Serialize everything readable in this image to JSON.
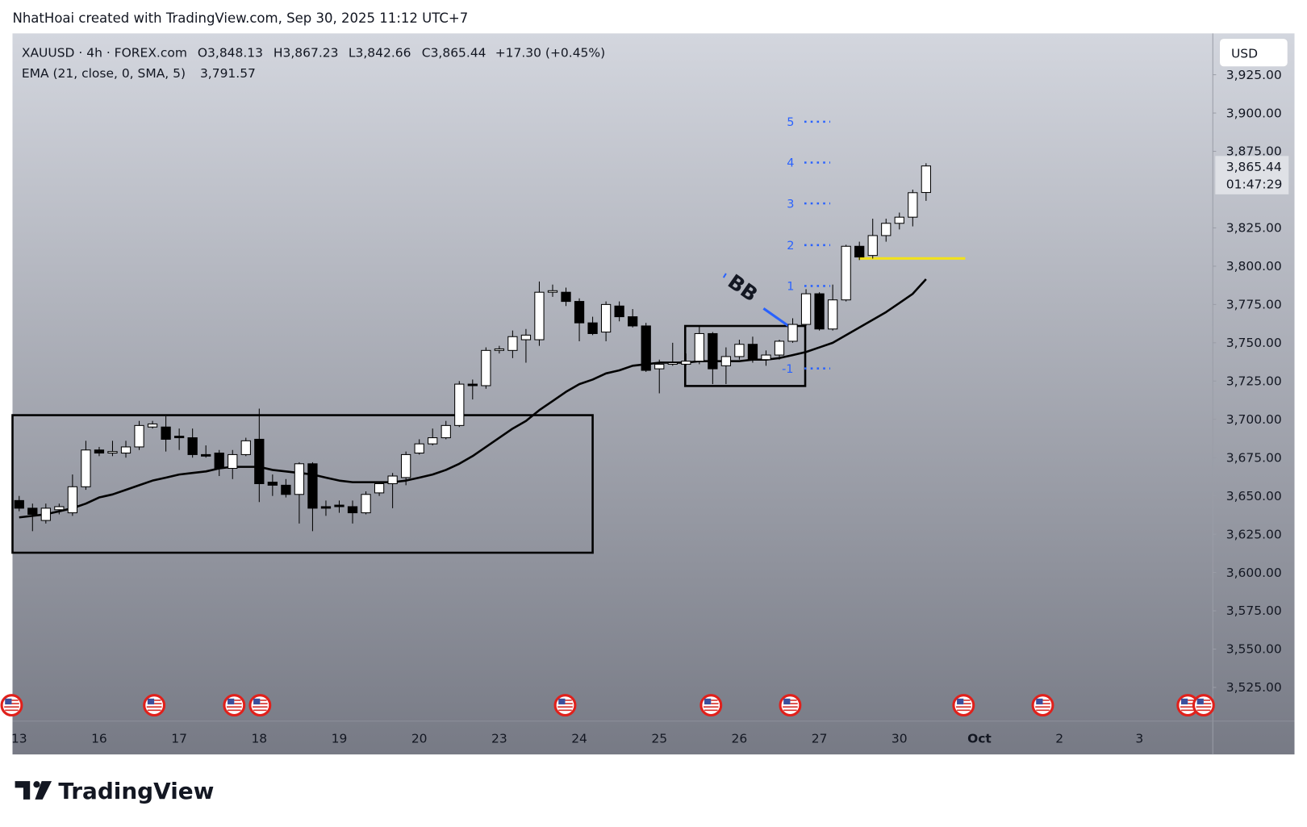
{
  "chart_data": {
    "type": "candlestick",
    "header": "NhatHoai created with TradingView.com, Sep 30, 2025 11:12 UTC+7",
    "symbol": "XAUUSD · 4h · FOREX.com",
    "ohlc_legend": [
      "O3,848.13",
      "H3,867.23",
      "L3,842.66",
      "C3,865.44",
      "+17.30 (+0.45%)"
    ],
    "currency": "USD",
    "up_color": "#ffffff",
    "down_color": "#000000",
    "categories": [
      "13",
      null,
      null,
      null,
      null,
      null,
      "16",
      null,
      null,
      null,
      null,
      null,
      "17",
      null,
      null,
      null,
      null,
      null,
      "18",
      null,
      null,
      null,
      null,
      null,
      "19",
      null,
      null,
      null,
      null,
      null,
      "20",
      null,
      null,
      null,
      null,
      null,
      "23",
      null,
      null,
      null,
      null,
      null,
      "24",
      null,
      null,
      null,
      null,
      null,
      "25",
      null,
      null,
      null,
      null,
      null,
      "26",
      null,
      null,
      null,
      null,
      null,
      "27",
      null,
      null,
      null,
      null,
      null,
      "30",
      null,
      null,
      null,
      null,
      null,
      "Oct",
      null,
      null,
      null,
      null,
      null,
      "2",
      null,
      null,
      null,
      null,
      null,
      "3",
      null,
      null,
      null,
      null,
      null
    ],
    "open": [
      3647,
      3642,
      3634,
      3641,
      3639,
      3656,
      3680,
      3678,
      3678,
      3682,
      3695,
      3695,
      3689,
      3688,
      3677,
      3678,
      3668,
      3677,
      3687,
      3659,
      3657,
      3651,
      3671,
      3643,
      3644,
      3643,
      3639,
      3652,
      3658,
      3662,
      3678,
      3684,
      3688,
      3696,
      3723,
      3722,
      3745,
      3745,
      3752,
      3752,
      3783,
      3783,
      3777,
      3763,
      3757,
      3774,
      3767,
      3761,
      3733,
      3736,
      3736,
      3738,
      3756,
      3735,
      3741,
      3749,
      3739,
      3742,
      3751,
      3762,
      3782,
      3759,
      3778,
      3813,
      3807,
      3820,
      3828,
      3832,
      3848.13,
      null,
      null,
      null,
      null,
      null,
      null,
      null,
      null,
      null,
      null,
      null,
      null,
      null,
      null,
      null,
      null,
      null,
      null,
      null,
      null,
      null
    ],
    "high": [
      3650,
      3645,
      3645,
      3645,
      3664,
      3686,
      3682,
      3686,
      3686,
      3699,
      3699,
      3702,
      3694,
      3694,
      3683,
      3680,
      3680,
      3688,
      3707,
      3664,
      3661,
      3672,
      3672,
      3647,
      3647,
      3647,
      3653,
      3659,
      3665,
      3679,
      3687,
      3694,
      3699,
      3725,
      3726,
      3747,
      3748,
      3758,
      3759,
      3790,
      3788,
      3786,
      3779,
      3767,
      3777,
      3777,
      3772,
      3763,
      3739,
      3750,
      3743,
      3761,
      3757,
      3747,
      3752,
      3754,
      3745,
      3752,
      3766,
      3785,
      3783,
      3788,
      3814,
      3816,
      3831,
      3831,
      3835,
      3850,
      3867.23,
      null,
      null,
      null,
      null,
      null,
      null,
      null,
      null,
      null,
      null,
      null,
      null,
      null,
      null,
      null,
      null,
      null,
      null,
      null,
      null,
      null
    ],
    "low": [
      3640,
      3627,
      3632,
      3638,
      3637,
      3654,
      3676,
      3676,
      3675,
      3680,
      3694,
      3679,
      3680,
      3675,
      3675,
      3663,
      3661,
      3676,
      3646,
      3650,
      3649,
      3632,
      3627,
      3637,
      3639,
      3632,
      3638,
      3650,
      3642,
      3657,
      3677,
      3683,
      3687,
      3695,
      3713,
      3720,
      3743,
      3740,
      3737,
      3748,
      3780,
      3774,
      3751,
      3755,
      3751,
      3764,
      3760,
      3731,
      3717,
      3735,
      3735,
      3736,
      3723,
      3723,
      3739,
      3737,
      3735,
      3739,
      3750,
      3761,
      3758,
      3758,
      3777,
      3804,
      3805,
      3816,
      3824,
      3826,
      3842.66,
      null,
      null,
      null,
      null,
      null,
      null,
      null,
      null,
      null,
      null,
      null,
      null,
      null,
      null,
      null,
      null,
      null,
      null,
      null,
      null,
      null
    ],
    "close": [
      3642,
      3638,
      3642,
      3643,
      3656,
      3680,
      3678,
      3679,
      3682,
      3696,
      3697,
      3687,
      3688,
      3677,
      3676,
      3668,
      3677,
      3686,
      3658,
      3657,
      3651,
      3671,
      3642,
      3642,
      3643,
      3639,
      3651,
      3658,
      3663,
      3677,
      3684,
      3688,
      3696,
      3723,
      3722,
      3745,
      3746,
      3754,
      3755,
      3783,
      3784,
      3777,
      3763,
      3756,
      3775,
      3767,
      3761,
      3732,
      3736,
      3737,
      3738,
      3756,
      3733,
      3741,
      3749,
      3739,
      3742,
      3751,
      3762,
      3782,
      3759,
      3778,
      3813,
      3806,
      3820,
      3828,
      3832,
      3848,
      3865.44,
      null,
      null,
      null,
      null,
      null,
      null,
      null,
      null,
      null,
      null,
      null,
      null,
      null,
      null,
      null,
      null,
      null,
      null,
      null,
      null,
      null
    ],
    "ema": {
      "name": "EMA (21, close, 0, SMA, 5)",
      "value_label": "3,791.57",
      "color": "#000000",
      "values": [
        3636,
        3637,
        3638,
        3640,
        3642,
        3645,
        3649,
        3651,
        3654,
        3657,
        3660,
        3662,
        3664,
        3665,
        3666,
        3668,
        3669,
        3669,
        3669,
        3667,
        3666,
        3665,
        3664,
        3662,
        3660,
        3659,
        3659,
        3659,
        3659,
        3660,
        3662,
        3664,
        3667,
        3671,
        3676,
        3682,
        3688,
        3694,
        3699,
        3706,
        3712,
        3718,
        3723,
        3726,
        3730,
        3732,
        3735,
        3736,
        3737,
        3737,
        3737,
        3738,
        3738,
        3738,
        3738,
        3739,
        3739,
        3740,
        3742,
        3744,
        3747,
        3750,
        3755,
        3760,
        3765,
        3770,
        3776,
        3782,
        3791.57,
        null,
        null,
        null,
        null,
        null,
        null,
        null,
        null,
        null,
        null,
        null,
        null,
        null,
        null,
        null,
        null,
        null,
        null,
        null,
        null,
        null
      ]
    },
    "last_price": {
      "label": "3,865.44",
      "countdown": "01:47:29"
    },
    "ylim": [
      3503,
      3952
    ],
    "yticks": [
      {
        "value": 3525,
        "label": "3,525.00"
      },
      {
        "value": 3550,
        "label": "3,550.00"
      },
      {
        "value": 3575,
        "label": "3,575.00"
      },
      {
        "value": 3600,
        "label": "3,600.00"
      },
      {
        "value": 3625,
        "label": "3,625.00"
      },
      {
        "value": 3650,
        "label": "3,650.00"
      },
      {
        "value": 3675,
        "label": "3,675.00"
      },
      {
        "value": 3700,
        "label": "3,700.00"
      },
      {
        "value": 3725,
        "label": "3,725.00"
      },
      {
        "value": 3750,
        "label": "3,750.00"
      },
      {
        "value": 3775,
        "label": "3,775.00"
      },
      {
        "value": 3800,
        "label": "3,800.00"
      },
      {
        "value": 3825,
        "label": "3,825.00"
      },
      {
        "value": 3875,
        "label": "3,875.00"
      },
      {
        "value": 3900,
        "label": "3,900.00"
      },
      {
        "value": 3925,
        "label": "3,925.00"
      }
    ],
    "grid": false,
    "fib_labels": [
      "5",
      "4",
      "3",
      "2",
      "1",
      "-1"
    ],
    "annotation": "BB",
    "brand": "TradingView"
  }
}
